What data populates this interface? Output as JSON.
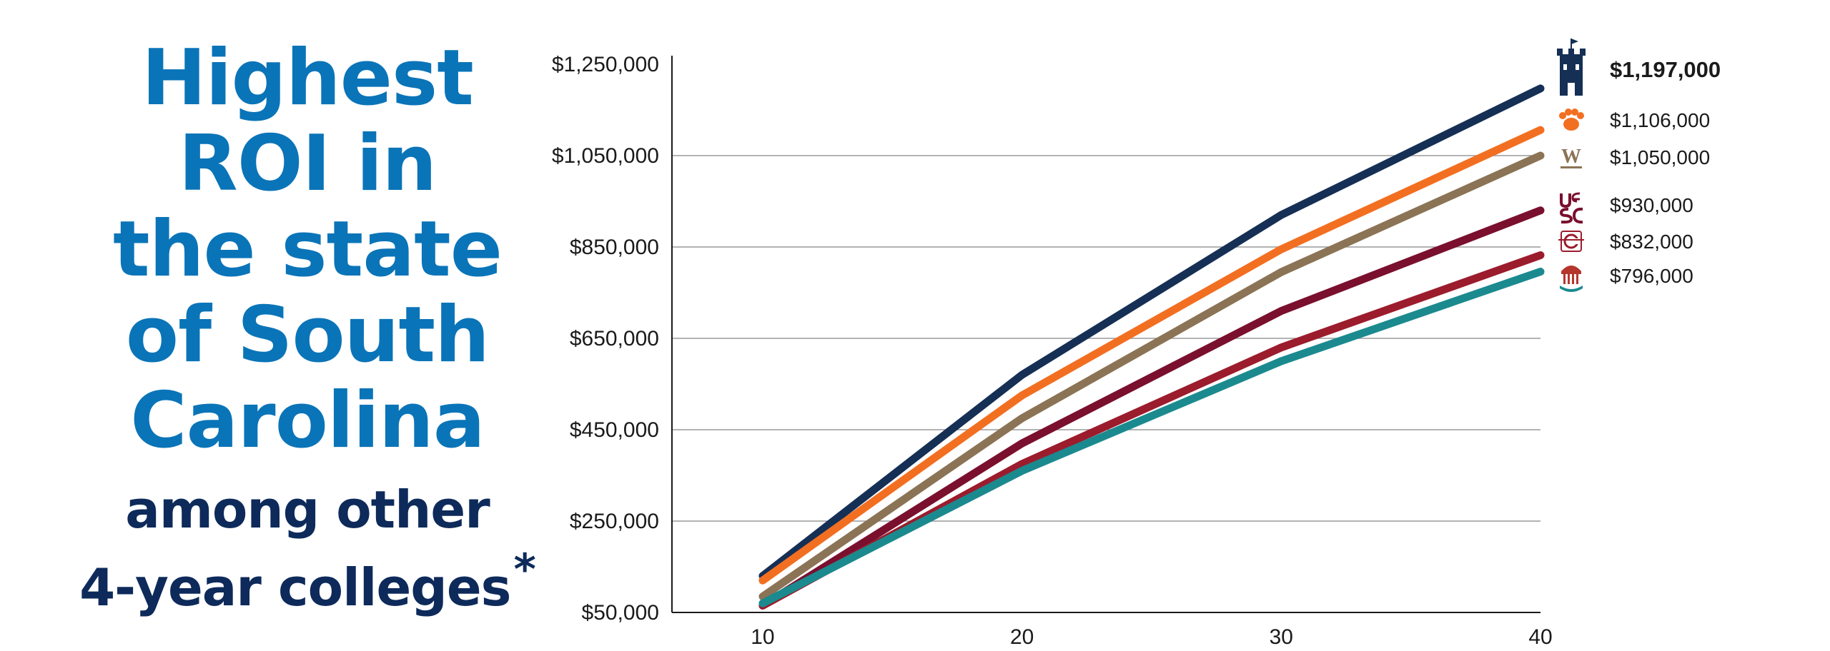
{
  "headline": {
    "lines": [
      "Highest",
      "ROI in",
      "the state",
      "of South",
      "Carolina"
    ],
    "sub_lines": [
      "among other",
      "4-year colleges"
    ],
    "asterisk": "*"
  },
  "chart_data": {
    "type": "line",
    "x": [
      10,
      20,
      30,
      40
    ],
    "x_tick_labels": [
      "10",
      "20",
      "30",
      "40"
    ],
    "xlim": [
      6.5,
      40
    ],
    "ylim": [
      50000,
      1250000
    ],
    "y_ticks": [
      50000,
      250000,
      450000,
      650000,
      850000,
      1050000,
      1250000
    ],
    "y_tick_labels": [
      "$50,000",
      "$250,000",
      "$450,000",
      "$650,000",
      "$850,000",
      "$1,050,000",
      "$1,250,000"
    ],
    "grid": "horizontal",
    "legend_position": "right",
    "series": [
      {
        "values": [
          130000,
          570000,
          920000,
          1197000
        ],
        "color": "#152f55",
        "end_label": "$1,197,000",
        "bold": true,
        "icon": "castle-icon"
      },
      {
        "values": [
          120000,
          525000,
          845000,
          1106000
        ],
        "color": "#f26f21",
        "end_label": "$1,106,000",
        "icon": "paw-icon"
      },
      {
        "values": [
          85000,
          475000,
          795000,
          1050000
        ],
        "color": "#8b7355",
        "end_label": "$1,050,000",
        "icon": "w-logo-icon"
      },
      {
        "values": [
          65000,
          420000,
          710000,
          930000
        ],
        "color": "#7a0f2e",
        "end_label": "$930,000",
        "icon": "usc-logo-icon"
      },
      {
        "values": [
          65000,
          375000,
          630000,
          832000
        ],
        "color": "#9b1c2c",
        "end_label": "$832,000",
        "icon": "c-seal-icon"
      },
      {
        "values": [
          70000,
          360000,
          600000,
          796000
        ],
        "color": "#1b8a8f",
        "end_label": "$796,000",
        "icon": "rotunda-icon"
      }
    ]
  }
}
